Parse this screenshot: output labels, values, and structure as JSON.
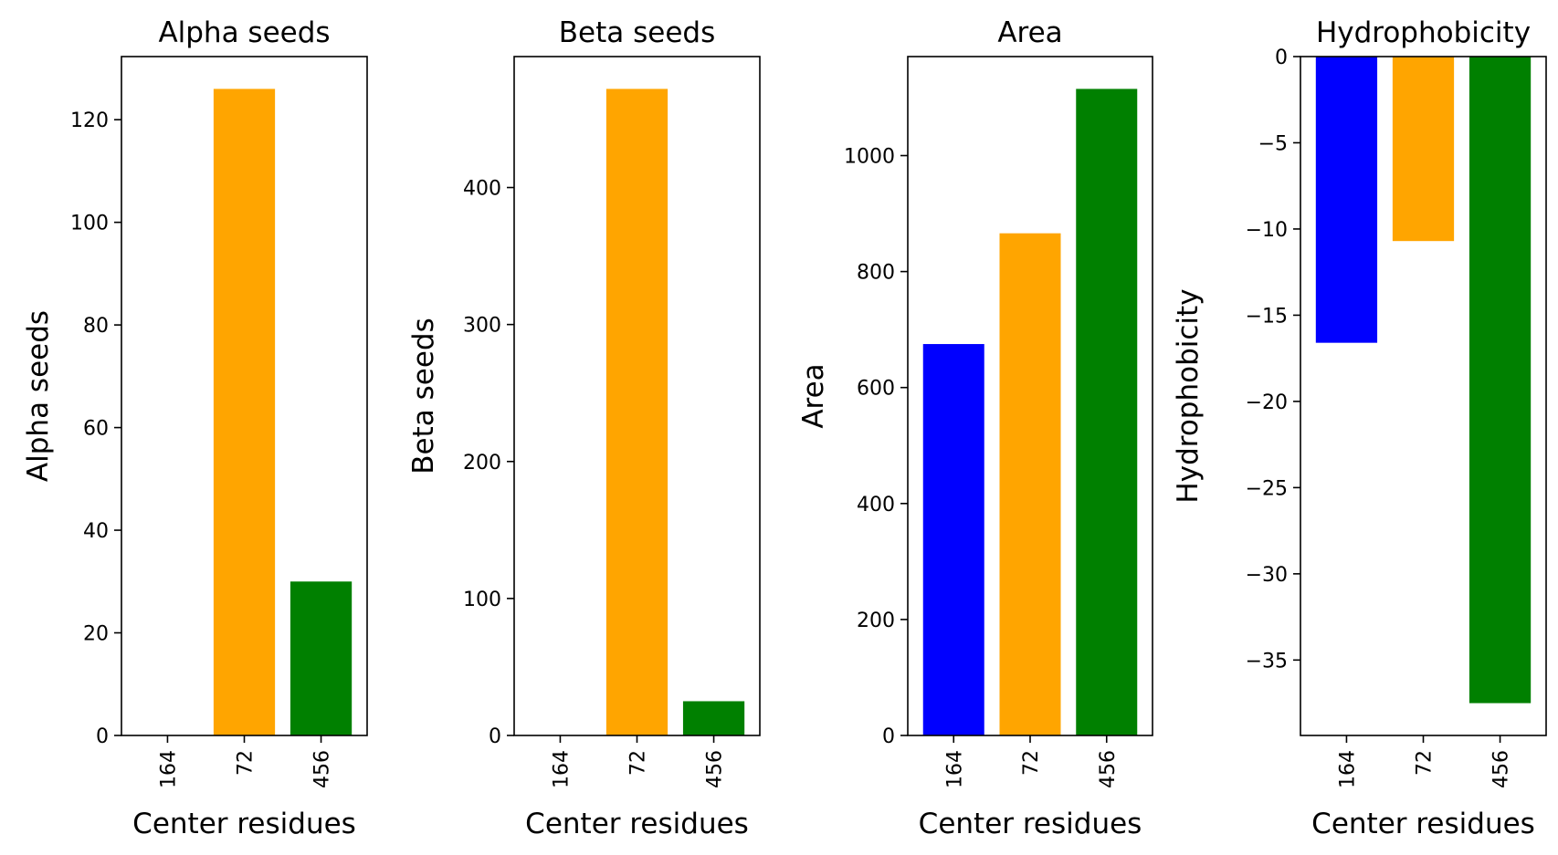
{
  "chart_data": [
    {
      "type": "bar",
      "title": "Alpha seeds",
      "xlabel": "Center residues",
      "ylabel": "Alpha seeds",
      "categories": [
        "164",
        "72",
        "456"
      ],
      "values": [
        0,
        126,
        30
      ],
      "colors": [
        "#0000ff",
        "#ffa500",
        "#008000"
      ],
      "ylim": [
        0,
        132.3
      ],
      "yticks": [
        0,
        20,
        40,
        60,
        80,
        100,
        120
      ],
      "ytick_labels": [
        "0",
        "20",
        "40",
        "60",
        "80",
        "100",
        "120"
      ]
    },
    {
      "type": "bar",
      "title": "Beta seeds",
      "xlabel": "Center residues",
      "ylabel": "Beta seeds",
      "categories": [
        "164",
        "72",
        "456"
      ],
      "values": [
        0,
        472,
        25
      ],
      "colors": [
        "#0000ff",
        "#ffa500",
        "#008000"
      ],
      "ylim": [
        0,
        495.6
      ],
      "yticks": [
        0,
        100,
        200,
        300,
        400
      ],
      "ytick_labels": [
        "0",
        "100",
        "200",
        "300",
        "400"
      ]
    },
    {
      "type": "bar",
      "title": "Area",
      "xlabel": "Center residues",
      "ylabel": "Area",
      "categories": [
        "164",
        "72",
        "456"
      ],
      "values": [
        675,
        866,
        1115
      ],
      "colors": [
        "#0000ff",
        "#ffa500",
        "#008000"
      ],
      "ylim": [
        0,
        1170.75
      ],
      "yticks": [
        0,
        200,
        400,
        600,
        800,
        1000
      ],
      "ytick_labels": [
        "0",
        "200",
        "400",
        "600",
        "800",
        "1000"
      ]
    },
    {
      "type": "bar",
      "title": "Hydrophobicity",
      "xlabel": "Center residues",
      "ylabel": "Hydrophobicity",
      "categories": [
        "164",
        "72",
        "456"
      ],
      "values": [
        -16.6,
        -10.7,
        -37.5
      ],
      "colors": [
        "#0000ff",
        "#ffa500",
        "#008000"
      ],
      "ylim": [
        -39.375,
        0
      ],
      "yticks": [
        0,
        -5,
        -10,
        -15,
        -20,
        -25,
        -30,
        -35
      ],
      "ytick_labels": [
        "0",
        "−5",
        "−10",
        "−15",
        "−20",
        "−25",
        "−30",
        "−35"
      ]
    }
  ]
}
